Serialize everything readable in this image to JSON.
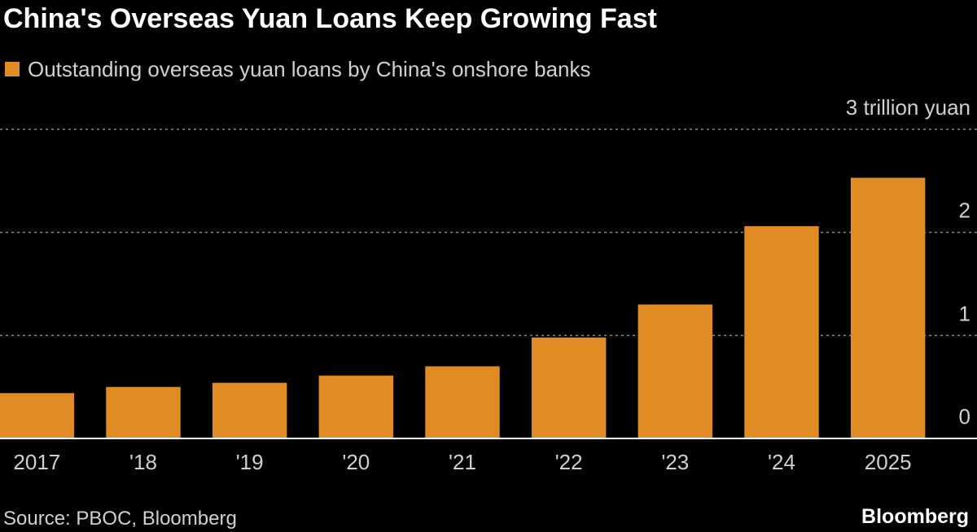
{
  "chart_data": {
    "type": "bar",
    "title": "China's Overseas Yuan Loans Keep Growing Fast",
    "categories": [
      "2017",
      "'18",
      "'19",
      "'20",
      "'21",
      "'22",
      "'23",
      "'24",
      "2025"
    ],
    "series": [
      {
        "name": "Outstanding overseas yuan loans by China's onshore banks",
        "color": "#e08b24",
        "values": [
          0.44,
          0.5,
          0.54,
          0.61,
          0.7,
          0.98,
          1.3,
          2.06,
          2.53
        ]
      }
    ],
    "ylim": [
      0,
      3
    ],
    "yticks": [
      0,
      1,
      2,
      {
        "value": 3,
        "label": "3 trillion yuan"
      }
    ],
    "grid": true,
    "source": "Source: PBOC, Bloomberg"
  },
  "brand": "Bloomberg"
}
